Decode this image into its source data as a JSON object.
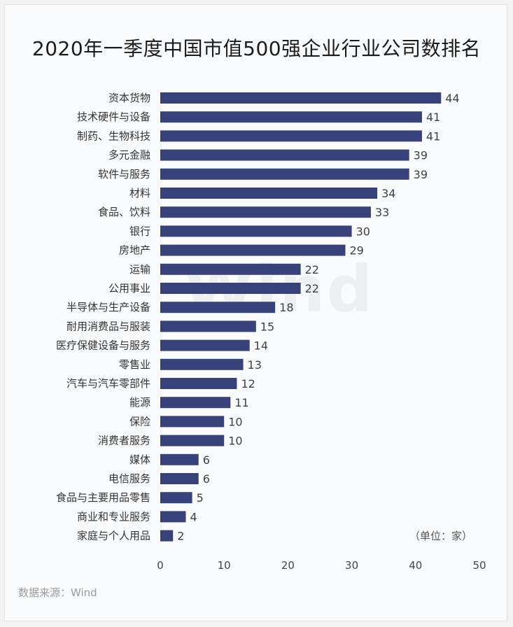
{
  "watermark": "Wind",
  "unit_note": "（单位：家）",
  "source": "数据来源：Wind",
  "colors": {
    "bar": "#38427a",
    "label": "#333333",
    "value": "#404040"
  },
  "chart_data": {
    "type": "bar",
    "orientation": "horizontal",
    "title": "2020年一季度中国市值500强企业行业公司数排名",
    "categories": [
      "资本货物",
      "技术硬件与设备",
      "制药、生物科技",
      "多元金融",
      "软件与服务",
      "材料",
      "食品、饮料",
      "银行",
      "房地产",
      "运输",
      "公用事业",
      "半导体与生产设备",
      "耐用消费品与服装",
      "医疗保健设备与服务",
      "零售业",
      "汽车与汽车零部件",
      "能源",
      "保险",
      "消费者服务",
      "媒体",
      "电信服务",
      "食品与主要用品零售",
      "商业和专业服务",
      "家庭与个人用品"
    ],
    "values": [
      44,
      41,
      41,
      39,
      39,
      34,
      33,
      30,
      29,
      22,
      22,
      18,
      15,
      14,
      13,
      12,
      11,
      10,
      10,
      6,
      6,
      5,
      4,
      2
    ],
    "xlim": [
      0,
      50
    ],
    "xticks": [
      0,
      10,
      20,
      30,
      40,
      50
    ],
    "grid": false,
    "legend": "none"
  }
}
